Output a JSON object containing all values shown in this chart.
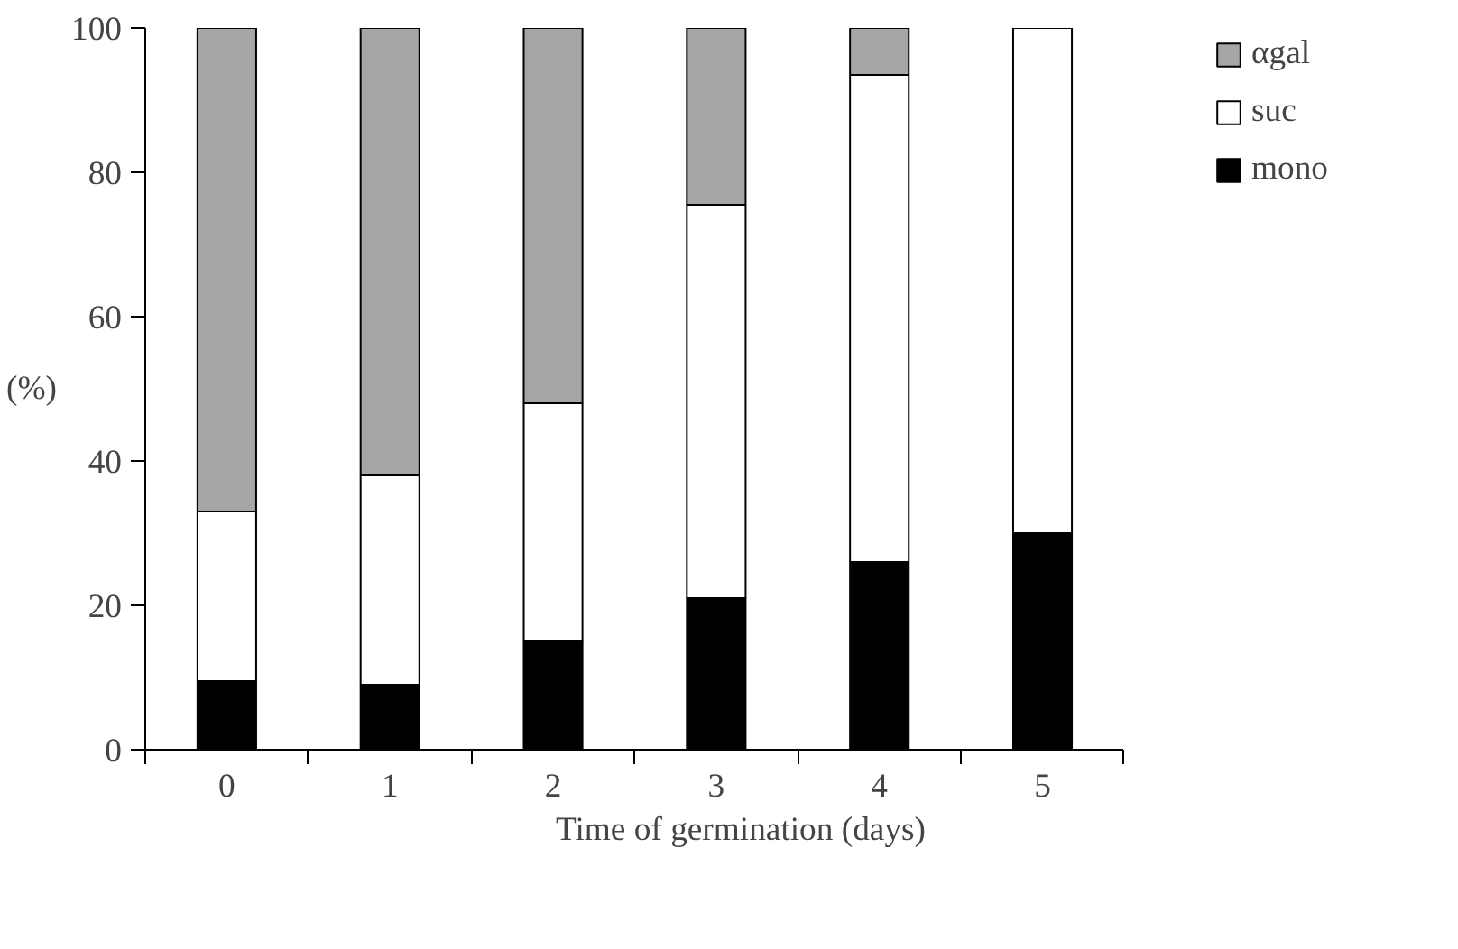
{
  "chart_data": {
    "type": "bar",
    "stacked": true,
    "xlabel": "Time of germination (days)",
    "ylabel": "(%)",
    "categories": [
      "0",
      "1",
      "2",
      "3",
      "4",
      "5"
    ],
    "series": [
      {
        "name": "mono",
        "color": "#000000",
        "values": [
          9.5,
          9,
          15,
          21,
          26,
          30
        ]
      },
      {
        "name": "suc",
        "color": "#ffffff",
        "values": [
          23.5,
          29,
          33,
          54.5,
          67.5,
          70
        ]
      },
      {
        "name": "αgal",
        "color": "#a6a6a6",
        "values": [
          67,
          62,
          52,
          24.5,
          6.5,
          0
        ]
      }
    ],
    "ylim": [
      0,
      100
    ],
    "yticks": [
      0,
      20,
      40,
      60,
      80,
      100
    ],
    "grid": false,
    "legend": "top right"
  }
}
